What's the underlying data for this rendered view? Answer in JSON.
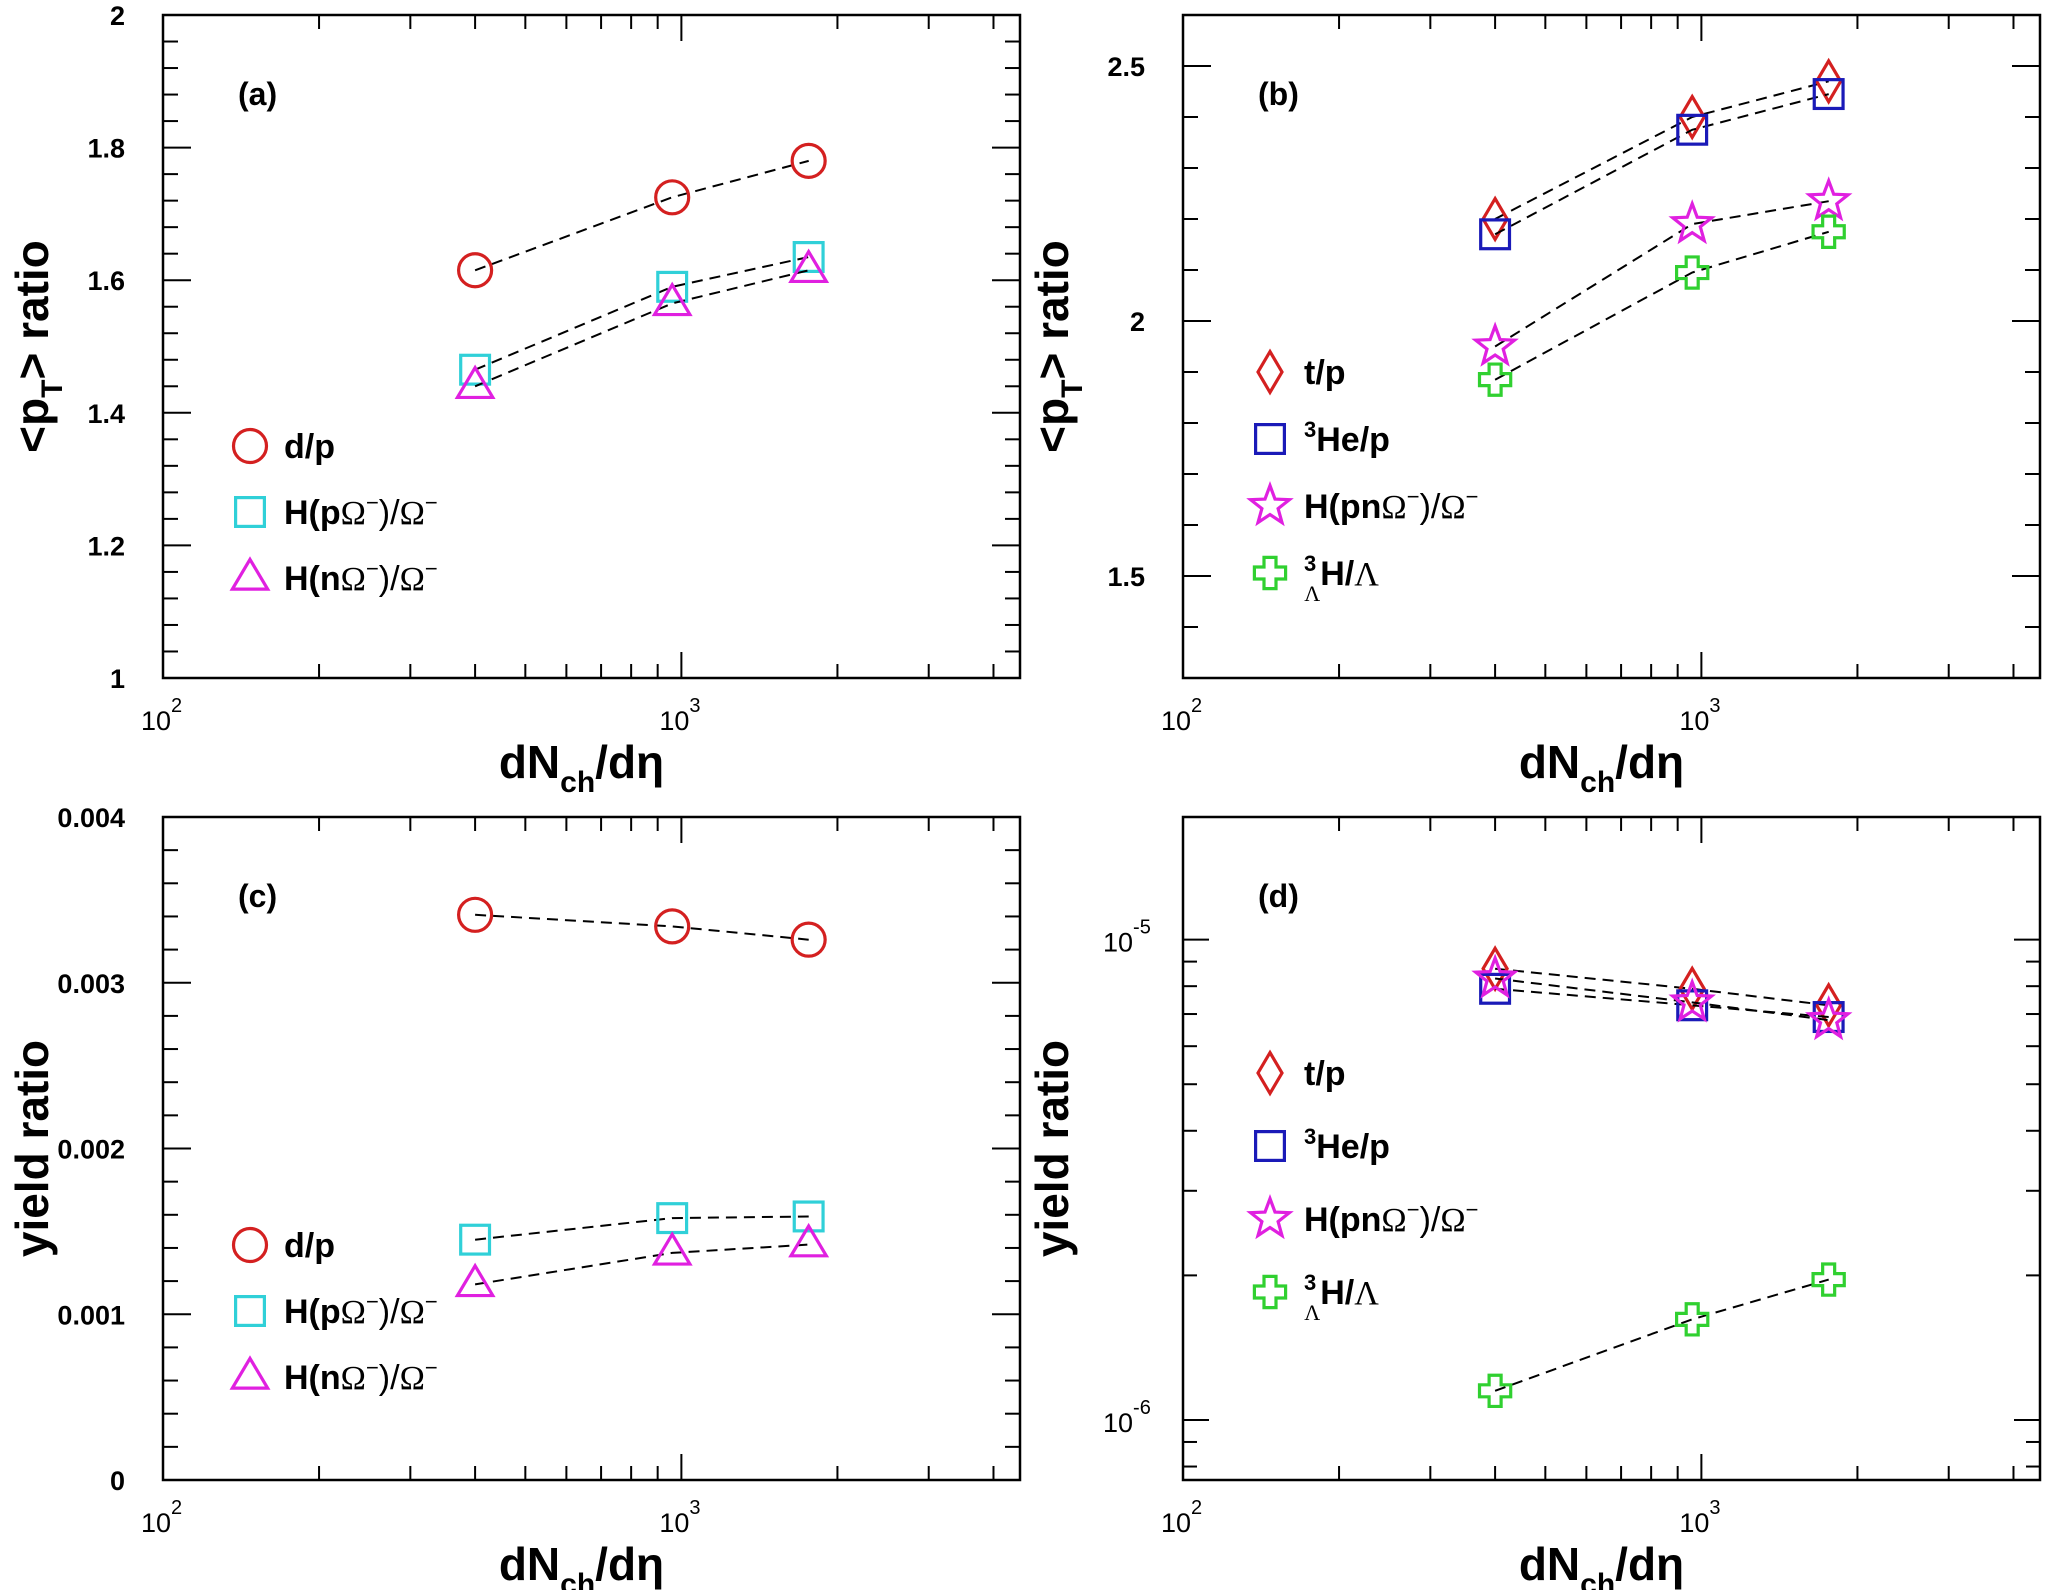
{
  "chart_data": [
    {
      "panel": "a",
      "type": "scatter",
      "label": "(a)",
      "xlabel": "dN_ch/dη",
      "xlabel_parts": {
        "main": "dN",
        "sub": "ch",
        "rest": "/dη"
      },
      "ylabel": "<p_T> ratio",
      "ylabel_parts": {
        "pre": "<p",
        "sub": "T",
        "post": "> ratio"
      },
      "xscale": "log",
      "yscale": "linear",
      "xlim": [
        100,
        4500
      ],
      "ylim": [
        1,
        2
      ],
      "xticks": [
        {
          "base": "10",
          "exp": "2",
          "value": 100
        },
        {
          "base": "10",
          "exp": "3",
          "value": 1000
        }
      ],
      "yticks": [
        {
          "label": "1",
          "value": 1
        },
        {
          "label": "1.2",
          "value": 1.2
        },
        {
          "label": "1.4",
          "value": 1.4
        },
        {
          "label": "1.6",
          "value": 1.6
        },
        {
          "label": "1.8",
          "value": 1.8
        },
        {
          "label": "2",
          "value": 2
        }
      ],
      "legend_position": "bottom-left",
      "series": [
        {
          "name": "d/p",
          "marker": "circle",
          "color": "#d42020",
          "x": [
            400,
            960,
            1760
          ],
          "y": [
            1.615,
            1.725,
            1.78
          ]
        },
        {
          "name": "H(pΩ⁻)/Ω⁻",
          "marker": "square",
          "color": "#30d0d8",
          "x": [
            400,
            960,
            1760
          ],
          "y": [
            1.465,
            1.59,
            1.635
          ]
        },
        {
          "name": "H(nΩ⁻)/Ω⁻",
          "marker": "triangle",
          "color": "#e020e0",
          "x": [
            400,
            960,
            1760
          ],
          "y": [
            1.44,
            1.565,
            1.615
          ]
        }
      ]
    },
    {
      "panel": "b",
      "type": "scatter",
      "label": "(b)",
      "xlabel": "dN_ch/dη",
      "xlabel_parts": {
        "main": "dN",
        "sub": "ch",
        "rest": "/dη"
      },
      "ylabel": "<p_T> ratio",
      "ylabel_parts": {
        "pre": "<p",
        "sub": "T",
        "post": "> ratio"
      },
      "xscale": "log",
      "yscale": "linear",
      "xlim": [
        100,
        4500
      ],
      "ylim": [
        1.3,
        2.6
      ],
      "xticks": [
        {
          "base": "10",
          "exp": "2",
          "value": 100
        },
        {
          "base": "10",
          "exp": "3",
          "value": 1000
        }
      ],
      "yticks": [
        {
          "label": "1.5",
          "value": 1.5
        },
        {
          "label": "2",
          "value": 2
        },
        {
          "label": "2.5",
          "value": 2.5
        }
      ],
      "legend_position": "bottom-left",
      "series": [
        {
          "name": "t/p",
          "marker": "diamond",
          "color": "#d42020",
          "x": [
            400,
            960,
            1760
          ],
          "y": [
            2.2,
            2.4,
            2.47
          ]
        },
        {
          "name": "³He/p",
          "marker": "square",
          "color": "#1a1ab8",
          "x": [
            400,
            960,
            1760
          ],
          "y": [
            2.17,
            2.375,
            2.445
          ]
        },
        {
          "name": "H(pnΩ⁻)/Ω⁻",
          "marker": "star",
          "color": "#e020e0",
          "x": [
            400,
            960,
            1760
          ],
          "y": [
            1.95,
            2.19,
            2.235
          ]
        },
        {
          "name": "³ΛH/Λ",
          "marker": "cross",
          "color": "#30d030",
          "x": [
            400,
            960,
            1760
          ],
          "y": [
            1.885,
            2.095,
            2.175
          ]
        }
      ]
    },
    {
      "panel": "c",
      "type": "scatter",
      "label": "(c)",
      "xlabel": "dN_ch/dη",
      "xlabel_parts": {
        "main": "dN",
        "sub": "ch",
        "rest": "/dη"
      },
      "ylabel": "yield ratio",
      "xscale": "log",
      "yscale": "linear",
      "xlim": [
        100,
        4500
      ],
      "ylim": [
        0,
        0.004
      ],
      "xticks": [
        {
          "base": "10",
          "exp": "2",
          "value": 100
        },
        {
          "base": "10",
          "exp": "3",
          "value": 1000
        }
      ],
      "yticks": [
        {
          "label": "0",
          "value": 0
        },
        {
          "label": "0.001",
          "value": 0.001
        },
        {
          "label": "0.002",
          "value": 0.002
        },
        {
          "label": "0.003",
          "value": 0.003
        },
        {
          "label": "0.004",
          "value": 0.004
        }
      ],
      "legend_position": "bottom-left",
      "series": [
        {
          "name": "d/p",
          "marker": "circle",
          "color": "#d42020",
          "x": [
            400,
            960,
            1760
          ],
          "y": [
            0.00341,
            0.00334,
            0.00326
          ]
        },
        {
          "name": "H(pΩ⁻)/Ω⁻",
          "marker": "square",
          "color": "#30d0d8",
          "x": [
            400,
            960,
            1760
          ],
          "y": [
            0.00145,
            0.00158,
            0.00159
          ]
        },
        {
          "name": "H(nΩ⁻)/Ω⁻",
          "marker": "triangle",
          "color": "#e020e0",
          "x": [
            400,
            960,
            1760
          ],
          "y": [
            0.00118,
            0.00137,
            0.00142
          ]
        }
      ]
    },
    {
      "panel": "d",
      "type": "scatter",
      "label": "(d)",
      "xlabel": "dN_ch/dη",
      "xlabel_parts": {
        "main": "dN",
        "sub": "ch",
        "rest": "/dη"
      },
      "ylabel": "yield ratio",
      "xscale": "log",
      "yscale": "log",
      "xlim": [
        100,
        4500
      ],
      "ylim": [
        7.5e-07,
        1.8e-05
      ],
      "xticks": [
        {
          "base": "10",
          "exp": "2",
          "value": 100
        },
        {
          "base": "10",
          "exp": "3",
          "value": 1000
        }
      ],
      "yticks": [
        {
          "base": "10",
          "exp": "-6",
          "value": 1e-06
        },
        {
          "base": "10",
          "exp": "-5",
          "value": 1e-05
        }
      ],
      "legend_position": "center-left",
      "series": [
        {
          "name": "t/p",
          "marker": "diamond",
          "color": "#d42020",
          "x": [
            400,
            960,
            1760
          ],
          "y": [
            8.7e-06,
            7.9e-06,
            7.3e-06
          ]
        },
        {
          "name": "³He/p",
          "marker": "square",
          "color": "#1a1ab8",
          "x": [
            400,
            960,
            1760
          ],
          "y": [
            7.9e-06,
            7.3e-06,
            6.9e-06
          ]
        },
        {
          "name": "H(pnΩ⁻)/Ω⁻",
          "marker": "star",
          "color": "#e020e0",
          "x": [
            400,
            960,
            1760
          ],
          "y": [
            8.3e-06,
            7.4e-06,
            6.8e-06
          ]
        },
        {
          "name": "³ΛH/Λ",
          "marker": "cross",
          "color": "#30d030",
          "x": [
            400,
            960,
            1760
          ],
          "y": [
            1.15e-06,
            1.62e-06,
            1.96e-06
          ]
        }
      ]
    }
  ]
}
